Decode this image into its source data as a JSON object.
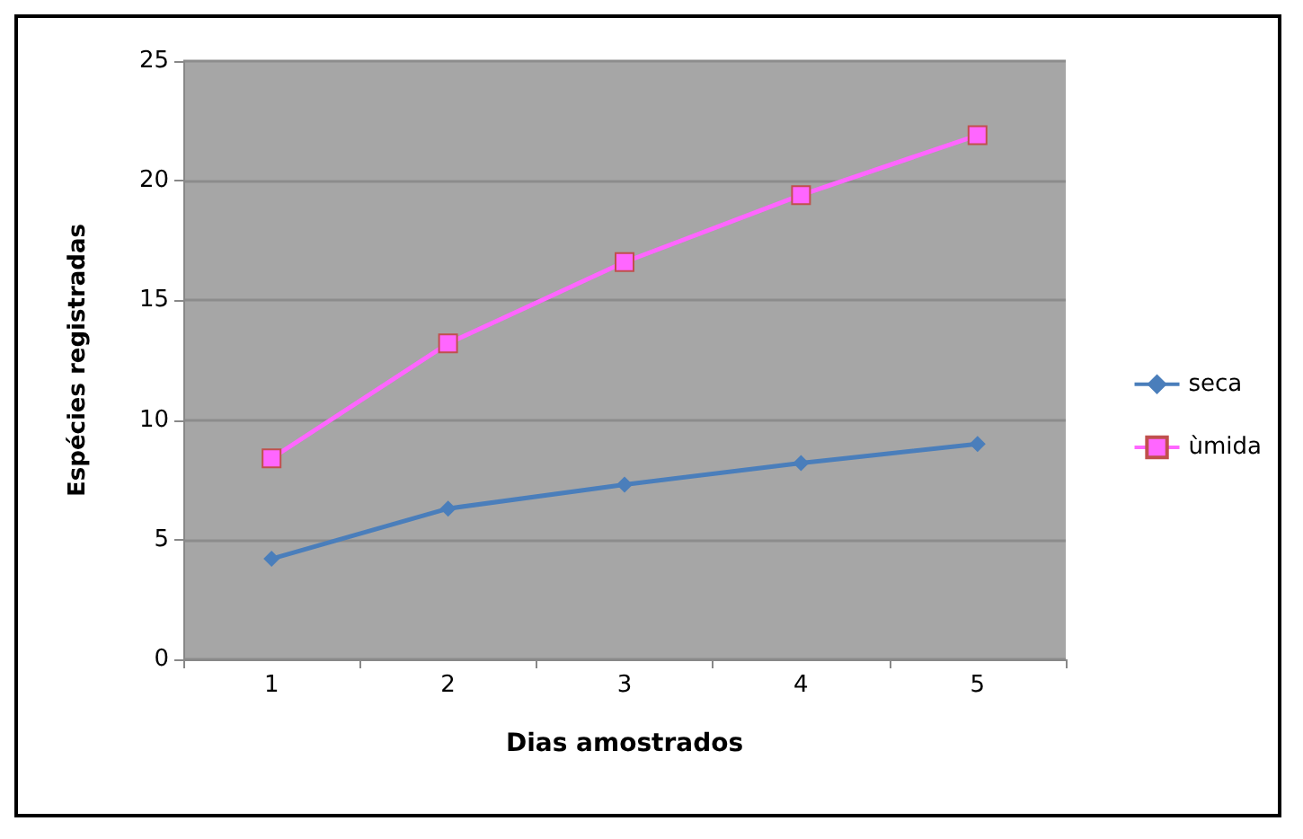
{
  "chart_data": {
    "type": "line",
    "xlabel": "Dias amostrados",
    "ylabel": "Espécies registradas",
    "categories": [
      "1",
      "2",
      "3",
      "4",
      "5"
    ],
    "series": [
      {
        "name": "seca",
        "color": "#4a7ebb",
        "marker": "diamond",
        "values": [
          4.2,
          6.3,
          7.3,
          8.2,
          9.0
        ]
      },
      {
        "name": "ùmida",
        "color": "#ff66ff",
        "marker": "square",
        "values": [
          8.4,
          13.2,
          16.6,
          19.4,
          21.9
        ]
      }
    ],
    "ylim": [
      0,
      25
    ],
    "yticks": [
      0,
      5,
      10,
      15,
      20,
      25
    ],
    "grid": "y",
    "legend": "right"
  }
}
